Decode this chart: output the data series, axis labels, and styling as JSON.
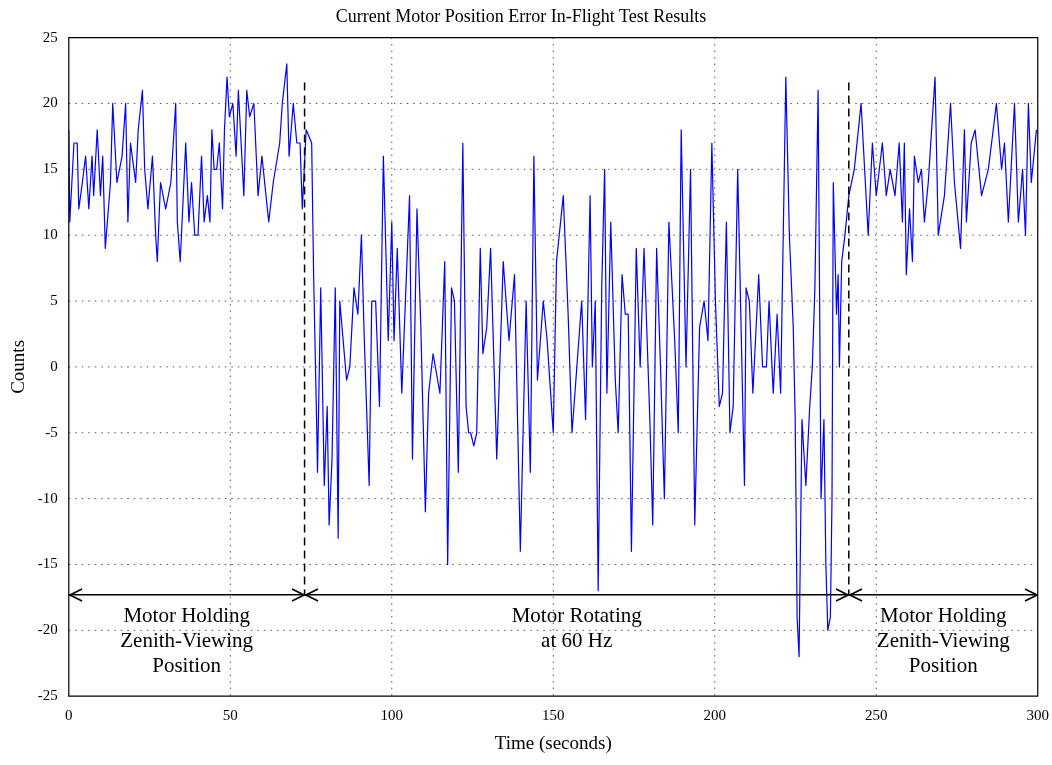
{
  "chart_data": {
    "type": "line",
    "title": "Current Motor Position Error In-Flight Test Results",
    "xlabel": "Time (seconds)",
    "ylabel": "Counts",
    "xlim": [
      0,
      300
    ],
    "xticks": [
      0,
      50,
      100,
      150,
      200,
      250,
      300
    ],
    "ylim": [
      -25,
      25
    ],
    "yticks": [
      -25,
      -20,
      -15,
      -10,
      -5,
      0,
      5,
      10,
      15,
      20,
      25
    ],
    "grid": true,
    "legend": false,
    "ref_lines": [
      {
        "axis": "x",
        "value": 73,
        "color": "#000000",
        "line_style": "dashed"
      },
      {
        "axis": "x",
        "value": 241.5,
        "color": "#000000",
        "line_style": "dashed"
      },
      {
        "axis": "y",
        "value": -17.3,
        "color": "#000000",
        "line_style": "solid"
      }
    ],
    "annotations": [
      "Motor Holding\nZenith-Viewing\nPosition",
      "Motor Rotating\nat 60 Hz",
      "Motor Holding\nZenith-Viewing\nPosition"
    ],
    "series": [
      {
        "color": "#0000ff",
        "x": [
          0,
          0.3,
          1.6,
          2.6,
          3.1,
          4.2,
          5.2,
          6.2,
          7.2,
          7.7,
          8.8,
          9.8,
          10.5,
          11.3,
          12.9,
          13.6,
          14.9,
          16.5,
          17.6,
          18.3,
          19.1,
          20.7,
          21.5,
          22.8,
          23.5,
          24.5,
          25.9,
          26.9,
          27.4,
          28.4,
          30,
          31.6,
          33.1,
          33.6,
          34.5,
          36.2,
          37.2,
          38,
          39,
          40,
          41.1,
          41.9,
          42.9,
          43.7,
          44.3,
          45,
          45.8,
          46.6,
          47.6,
          48.2,
          49,
          49.7,
          50.8,
          51.8,
          52.5,
          54.2,
          55.1,
          56,
          57.3,
          58.6,
          59.8,
          61.9,
          63.3,
          65.3,
          66.1,
          67.5,
          68.2,
          69.5,
          70.6,
          71.6,
          72.3,
          73.5,
          75.2,
          75.8,
          76.8,
          77,
          78,
          79.1,
          80,
          80.6,
          81.5,
          82.5,
          83.4,
          83.9,
          85.3,
          86,
          87,
          88.3,
          89.5,
          90.6,
          91.5,
          93,
          93.8,
          95,
          96.2,
          97.4,
          98.9,
          100,
          100.7,
          101.7,
          103.1,
          105.5,
          106.4,
          107.8,
          109,
          110.4,
          111.4,
          112.8,
          114.9,
          116.4,
          117.3,
          118.5,
          119.4,
          120.6,
          122,
          123,
          123.8,
          124.4,
          125.4,
          126.3,
          127.4,
          128.2,
          129.4,
          130.6,
          132.5,
          134.5,
          136.3,
          138,
          139.8,
          141.6,
          142.9,
          144,
          145.1,
          146,
          146.9,
          148.1,
          150,
          151,
          153.1,
          154.6,
          155.8,
          158.8,
          160,
          161.4,
          162.1,
          163,
          163.9,
          165,
          165.9,
          166.6,
          167.8,
          169.2,
          170.1,
          171.3,
          172.3,
          173.2,
          174.2,
          175.7,
          176.9,
          178.1,
          179.9,
          180.8,
          182,
          183.2,
          184.4,
          185.8,
          187.6,
          188.7,
          189.6,
          191.1,
          192.5,
          193.8,
          195.3,
          196.7,
          197.9,
          199.1,
          200.2,
          201.4,
          202.4,
          203.6,
          204.7,
          205.7,
          207.1,
          209.2,
          209.7,
          210.7,
          211.8,
          213.6,
          214.8,
          216,
          216.8,
          218.1,
          219.3,
          220.4,
          222,
          223.1,
          224.3,
          224.9,
          225.5,
          226.1,
          227,
          228.2,
          229.4,
          230.2,
          231,
          232,
          232.9,
          233.8,
          234.4,
          235,
          235.8,
          236.3,
          236.7,
          237.7,
          238.2,
          238.6,
          239.3,
          240.3,
          241.5,
          243.2,
          245.3,
          247.5,
          248.8,
          250,
          251.9,
          253.1,
          254.3,
          255.8,
          257.1,
          258.1,
          258.7,
          259.3,
          260.3,
          261.2,
          261.8,
          263,
          264,
          264.9,
          266.1,
          267.4,
          268.2,
          269.2,
          271.1,
          273,
          274.2,
          276.1,
          277.3,
          277.9,
          279.4,
          280.6,
          282.6,
          284.7,
          287.2,
          288.8,
          289.7,
          290.9,
          292.8,
          294,
          295.3,
          296.2,
          297.1,
          298,
          299.6
        ],
        "values": [
          18,
          11,
          17,
          17,
          12,
          14,
          16,
          12,
          16,
          13,
          18,
          13,
          16,
          9,
          14,
          20,
          14,
          16,
          20,
          11,
          17,
          14,
          18,
          21,
          15,
          12,
          16,
          10,
          8,
          14,
          12,
          14,
          20,
          11,
          8,
          17,
          11,
          14,
          10,
          10,
          16,
          11,
          13,
          11,
          18,
          15,
          15,
          17,
          12,
          18,
          22,
          19,
          20,
          16,
          21,
          13,
          21,
          19,
          20,
          13,
          16,
          11,
          14,
          17,
          20,
          23,
          16,
          20,
          17,
          17,
          12,
          18,
          17,
          7,
          -5,
          -8,
          6,
          -9,
          -3,
          -12,
          -7,
          6,
          -13,
          5,
          1,
          -1,
          0,
          6,
          4,
          10,
          2,
          -9,
          5,
          5,
          -3,
          16,
          2,
          11,
          2,
          9,
          -2,
          13,
          -7,
          12,
          3,
          -11,
          -2,
          1,
          -2,
          8,
          -15,
          6,
          5,
          -8,
          17,
          -3,
          -5,
          -5,
          -6,
          -5,
          9,
          1,
          3,
          9,
          -7,
          8,
          2,
          7,
          -14,
          5,
          -8,
          16,
          -1,
          2,
          5,
          2,
          -5,
          8,
          13,
          4,
          -5,
          5,
          -4,
          13,
          0,
          5,
          -17,
          6,
          15,
          -2,
          11,
          -1,
          -5,
          7,
          4,
          4,
          -14,
          9,
          0,
          9,
          -4,
          -12,
          9,
          0,
          -10,
          11,
          2,
          -5,
          18,
          0,
          15,
          -12,
          3,
          5,
          2,
          17,
          5,
          -3,
          -2,
          11,
          -5,
          -3,
          15,
          -9,
          6,
          5,
          -2,
          7,
          0,
          0,
          5,
          -2,
          4,
          -2,
          22,
          10,
          3,
          -4,
          -19,
          -22,
          -4,
          -9,
          -3,
          0,
          6,
          21,
          -10,
          -4,
          -15,
          -20,
          -19,
          -10,
          14,
          4,
          7,
          0,
          8,
          10,
          13,
          15,
          20,
          10,
          17,
          13,
          17,
          13,
          15,
          13,
          17,
          11,
          17,
          7,
          12,
          8,
          16,
          14,
          15,
          11,
          14,
          19,
          22,
          10,
          13,
          20,
          14,
          9,
          18,
          11,
          17,
          18,
          13,
          15,
          20,
          15,
          17,
          11,
          20,
          11,
          15,
          10,
          20,
          14,
          18
        ]
      }
    ]
  }
}
